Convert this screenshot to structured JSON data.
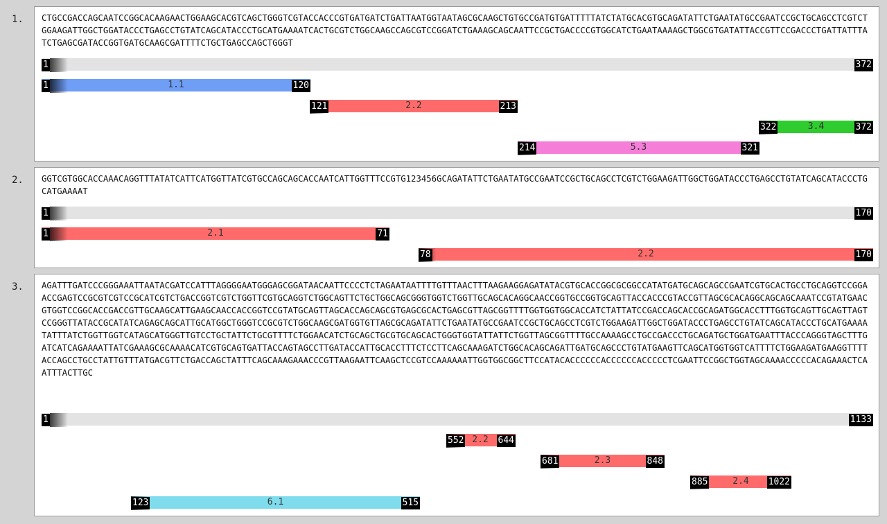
{
  "entries": [
    {
      "number": "1.",
      "sequence": "CTGCCGACCAGCAATCCGGCACAAGAACTGGAAGCACGTCAGCTGGGTCGTACCACCCGTGATGATCTGATTAATGGTAATAGCGCAAGCTGTGCCGATGTGATTTTTATCTATGCACGTGCAGATATTCTGAATATGCCGAATCCGCTGCAGCCTCGTCTGGAAGATTGGCTGGATACCCTGAGCCTGTATCAGCATACCCTGCATGAAAATCACTGCGTCTGGCAAGCCAGCGTCCGGATCTGAAAGCAGCAATTCCGCTGACCCCGTGGCATCTGAATAAAAGCTGGCGTGATATTACCGTTCCGACCCTGATTATTTATCTGAGCGATACCGGTGATGCAAGCGATTTTCTGCTGAGCCAGCTGGGT",
      "total": {
        "start": "1",
        "end": "372"
      },
      "segments": [
        {
          "start": "1",
          "end": "120",
          "label": "1.1",
          "color": "#6f9ef7"
        },
        {
          "start": "121",
          "end": "213",
          "label": "2.2",
          "color": "#ff6b6b"
        },
        {
          "start": "322",
          "end": "372",
          "label": "3.4",
          "color": "#2ecc2e"
        },
        {
          "start": "214",
          "end": "321",
          "label": "5.3",
          "color": "#f57fd8"
        }
      ]
    },
    {
      "number": "2.",
      "sequence": "GGTCGTGGCACCAAACAGGTTTATATCATTCATGGTTATCGTGCCAGCAGCACCAATCATTGGTTTCCGTG123456GCAGATATTCTGAATATGCCGAATCCGCTGCAGCCTCGTCTGGAAGATTGGCTGGATACCCTGAGCCTGTATCAGCATACCCTGCATGAAAAT",
      "total": {
        "start": "1",
        "end": "170"
      },
      "segments": [
        {
          "start": "1",
          "end": "71",
          "label": "2.1",
          "color": "#ff6b6b"
        },
        {
          "start": "78",
          "end": "170",
          "label": "2.2",
          "color": "#ff6b6b"
        }
      ]
    },
    {
      "number": "3.",
      "sequence": "AGATTTGATCCCGGGAAATTAATACGATCCATTTAGGGGAATGGGAGCGGATAACAATTCCCCTCTAGAATAATTTTGTTTAACTTTAAGAAGGAGATATACGTGCACCGGCGCGGCCATATGATGCAGCAGCCGAATCGTGCACTGCCTGCAGGTCCGGAACCGAGTCCGCGTCGTCCGCATCGTCTGACCGGTCGTCTGGTTCGTGCAGGTCTGGCAGTTCTGCTGGCAGCGGGTGGTCTGGTTGCAGCACAGGCAACCGGTGCCGGTGCAGTTACCACCCGTACCGTTAGCGCACAGGCAGCAGCAAATCCGTATGAACGTGGTCCGGCACCGACCGTTGCAAGCATTGAAGCAACCACCGGTCCGTATGCAGTTAGCACCAGCAGCGTGAGCGCACTGAGCGTTAGCGGTTTTGGTGGTGGCACCATCTATTATCCGACCAGCACCGCAGATGGCACCTTTGGTGCAGTTGCAGTTAGTCCGGGTTATACCGCATATCAGAGCAGCATTGCATGGCTGGGTCCGCGTCTGGCAAGCGATGGTGTTAGCGCAGATATTCTGAATATGCCGAATCCGCTGCAGCCTCGTCTGGAAGATTGGCTGGATACCCTGAGCCTGTATCAGCATACCCTGCATGAAAATATTTATCTGGTTGGTCATAGCATGGGTTGTCCTGCTATTCTGCGTTTTCTGGAACATCTGCAGCTGCGTGCAGCACTGGGTGGTATTATTCTGGTTAGCGGTTTTGCCAAAAGCCTGCCGACCCTGCAGATGCTGGATGAATTTACCCAGGGTAGCTTTGATCATCAGAAAATTATCGAAAGCGCAAAACATCGTGCAGTGATTACCAGTAGCCTTGATACCATTGCACCTTTCTCCTTCAGCAAAGATCTGGCACAGCAGATTGATGCAGCCCTGTATGAAGTTCAGCATGGTGGTCATTTTCTGGAAGATGAAGGTTTTACCAGCCTGCCTATTGTTTATGACGTTCTGACCAGCTATTTCAGCAAAGAAACCCGTTAAGAATTCAAGCTCCGTCCAAAAAATTGGTGGCGGCTTCCATACACCCCCCACCCCCCACCCCCTCGAATTCCGGCTGGTAGCAAAACCCCCACAGAAACTCAATTTACTTGC",
      "total": {
        "start": "1",
        "end": "1133"
      },
      "segments": [
        {
          "start": "552",
          "end": "644",
          "label": "2.2",
          "color": "#ff6b6b"
        },
        {
          "start": "681",
          "end": "848",
          "label": "2.3",
          "color": "#ff6b6b"
        },
        {
          "start": "885",
          "end": "1022",
          "label": "2.4",
          "color": "#ff6b6b"
        },
        {
          "start": "123",
          "end": "515",
          "label": "6.1",
          "color": "#7edcec"
        }
      ]
    }
  ]
}
